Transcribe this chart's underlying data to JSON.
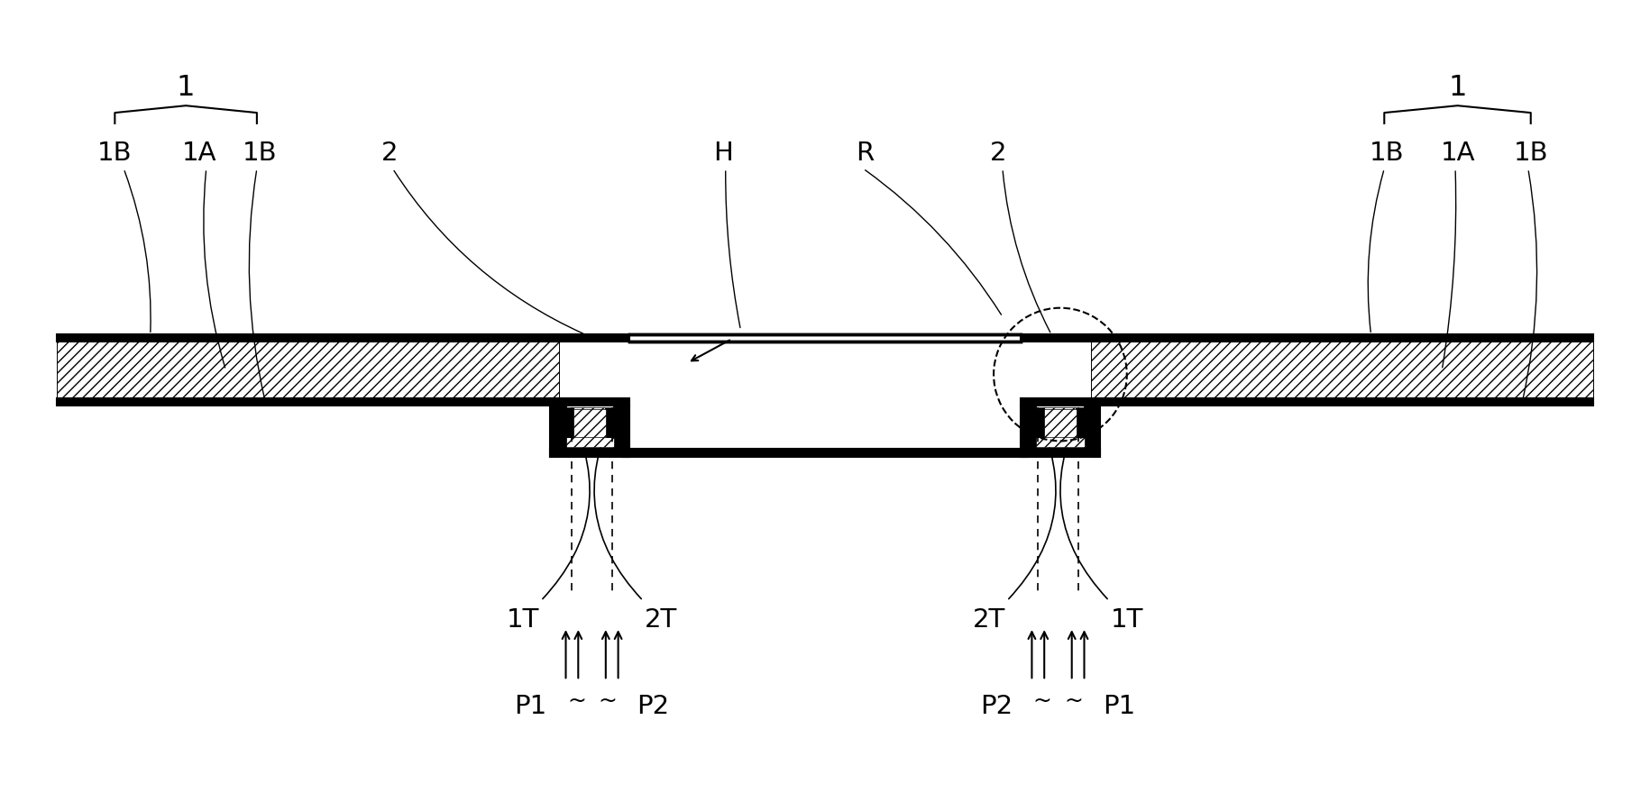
{
  "bg_color": "#ffffff",
  "line_color": "#000000",
  "fig_width": 18.31,
  "fig_height": 9.0,
  "labels": {
    "1_left": "1",
    "1_right": "1",
    "1A_left": "1A",
    "1B_left1": "1B",
    "1B_left2": "1B",
    "1A_right": "1A",
    "1B_right1": "1B",
    "1B_right2": "1B",
    "2_left": "2",
    "2_right": "2",
    "H": "H",
    "R": "R",
    "1T_left": "1T",
    "2T_left": "2T",
    "2T_right": "2T",
    "1T_right": "1T",
    "P1_left": "P1",
    "P2_left": "P2",
    "P2_right": "P2",
    "P1_right": "P1"
  }
}
